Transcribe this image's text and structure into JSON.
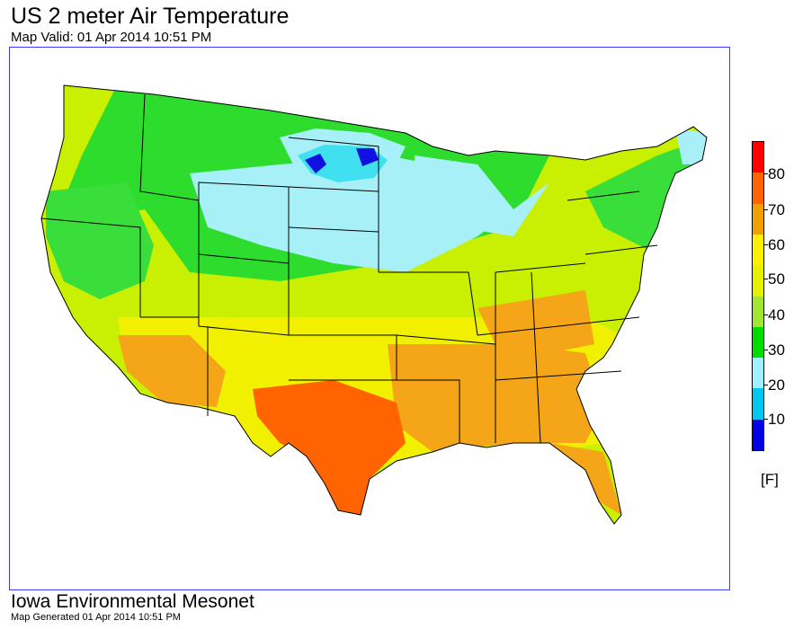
{
  "header": {
    "title": "US 2 meter Air Temperature",
    "subtitle": "Map Valid: 01 Apr 2014 10:51 PM"
  },
  "legend": {
    "units": "[F]",
    "ticks": [
      "10",
      "20",
      "30",
      "40",
      "50",
      "60",
      "70",
      "80"
    ],
    "colors": [
      "#0000e6",
      "#00c8f0",
      "#a0f0ff",
      "#00dc00",
      "#a0e632",
      "#e6f000",
      "#fff000",
      "#f0a000",
      "#ff6400",
      "#ff0000"
    ]
  },
  "footer": {
    "org": "Iowa Environmental Mesonet",
    "generated": "Map Generated 01 Apr 2014 10:51 PM"
  }
}
